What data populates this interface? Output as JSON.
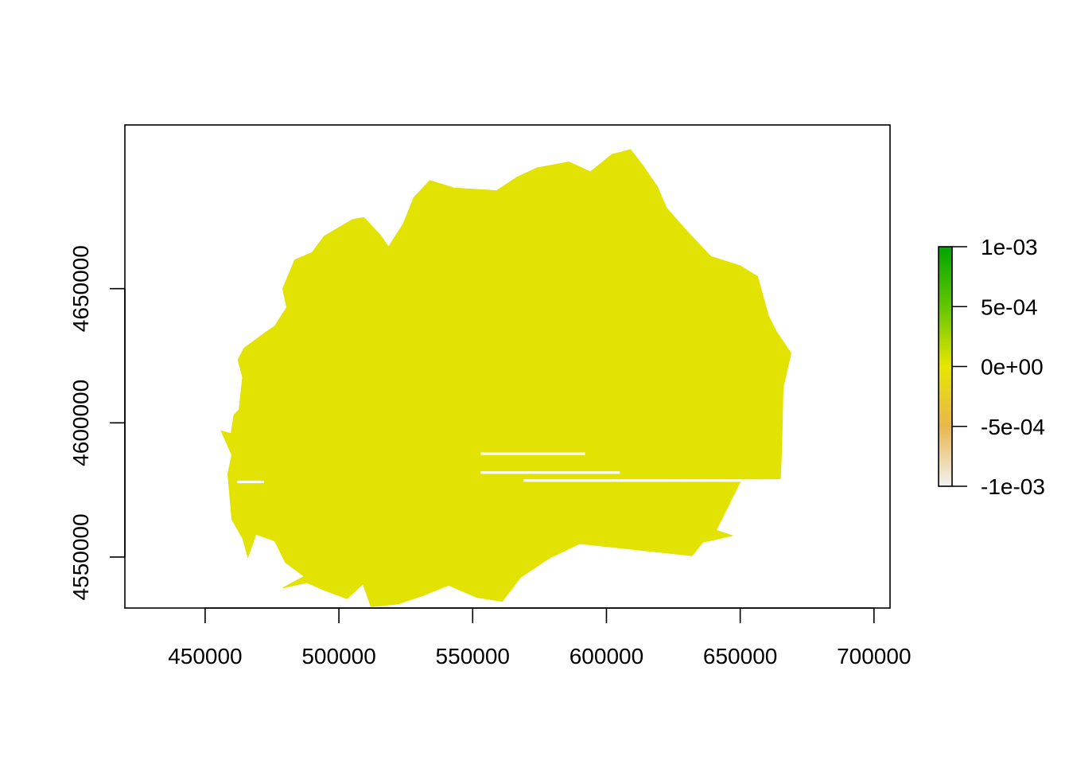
{
  "chart_data": {
    "type": "heatmap",
    "title": "",
    "xlabel": "",
    "ylabel": "",
    "xlim": [
      420000,
      706000
    ],
    "ylim": [
      4531000,
      4711000
    ],
    "x_ticks": [
      {
        "value": 450000,
        "label": "450000"
      },
      {
        "value": 500000,
        "label": "500000"
      },
      {
        "value": 550000,
        "label": "550000"
      },
      {
        "value": 600000,
        "label": "600000"
      },
      {
        "value": 650000,
        "label": "650000"
      },
      {
        "value": 700000,
        "label": "700000"
      }
    ],
    "y_ticks": [
      {
        "value": 4550000,
        "label": "4550000"
      },
      {
        "value": 4600000,
        "label": "4600000"
      },
      {
        "value": 4650000,
        "label": "4650000"
      }
    ],
    "raster_value": 0,
    "raster_color": "#e2e203",
    "region_outline": [
      [
        459700,
        4596000
      ],
      [
        460800,
        4603000
      ],
      [
        462700,
        4604800
      ],
      [
        464000,
        4617000
      ],
      [
        462300,
        4623500
      ],
      [
        464500,
        4627800
      ],
      [
        473000,
        4634000
      ],
      [
        476000,
        4636000
      ],
      [
        480500,
        4643000
      ],
      [
        479000,
        4650000
      ],
      [
        483500,
        4660700
      ],
      [
        490000,
        4663500
      ],
      [
        494500,
        4669500
      ],
      [
        505000,
        4675700
      ],
      [
        509300,
        4676500
      ],
      [
        515500,
        4670000
      ],
      [
        518500,
        4665500
      ],
      [
        524000,
        4674000
      ],
      [
        528000,
        4684000
      ],
      [
        534000,
        4690300
      ],
      [
        543000,
        4687500
      ],
      [
        559000,
        4686500
      ],
      [
        566500,
        4691500
      ],
      [
        574000,
        4695000
      ],
      [
        586000,
        4697200
      ],
      [
        594000,
        4693500
      ],
      [
        602000,
        4700000
      ],
      [
        609000,
        4701800
      ],
      [
        613500,
        4696000
      ],
      [
        619000,
        4688000
      ],
      [
        622500,
        4680000
      ],
      [
        630500,
        4671000
      ],
      [
        639000,
        4662000
      ],
      [
        650000,
        4658500
      ],
      [
        656500,
        4654500
      ],
      [
        660500,
        4640000
      ],
      [
        663500,
        4634000
      ],
      [
        669000,
        4626000
      ],
      [
        666000,
        4613000
      ],
      [
        665500,
        4591000
      ],
      [
        665000,
        4579200
      ],
      [
        612000,
        4578800
      ],
      [
        650000,
        4578000
      ],
      [
        641000,
        4560000
      ],
      [
        647000,
        4558000
      ],
      [
        636000,
        4555500
      ],
      [
        632000,
        4550500
      ],
      [
        604000,
        4553500
      ],
      [
        590000,
        4555000
      ],
      [
        578500,
        4549500
      ],
      [
        568000,
        4542500
      ],
      [
        561000,
        4533500
      ],
      [
        551500,
        4535000
      ],
      [
        541000,
        4539500
      ],
      [
        531000,
        4535500
      ],
      [
        522000,
        4532500
      ],
      [
        512000,
        4531500
      ],
      [
        509000,
        4540000
      ],
      [
        503000,
        4534500
      ],
      [
        495000,
        4537500
      ],
      [
        488000,
        4540500
      ],
      [
        479000,
        4538500
      ],
      [
        487000,
        4542800
      ],
      [
        480000,
        4548000
      ],
      [
        476000,
        4556000
      ],
      [
        469000,
        4558500
      ],
      [
        466000,
        4550000
      ],
      [
        464000,
        4557000
      ],
      [
        460000,
        4564000
      ],
      [
        458500,
        4581000
      ],
      [
        460000,
        4588000
      ],
      [
        456000,
        4597000
      ]
    ],
    "no_data_gaps": [
      {
        "x": [
          553000,
          592000
        ],
        "y": 4588500
      },
      {
        "x": [
          553000,
          605000
        ],
        "y": 4581500
      },
      {
        "x": [
          569000,
          650000
        ],
        "y": 4578500
      },
      {
        "x": [
          462000,
          472000
        ],
        "y": 4578000
      }
    ],
    "legend": {
      "placement": "right",
      "range": [
        -0.001,
        0.001
      ],
      "ticks": [
        {
          "value": 0.001,
          "label": "1e-03"
        },
        {
          "value": 0.0005,
          "label": "5e-04"
        },
        {
          "value": 0,
          "label": "0e+00"
        },
        {
          "value": -0.0005,
          "label": "-5e-04"
        },
        {
          "value": -0.001,
          "label": "-1e-03"
        }
      ],
      "color_stops": [
        {
          "value": 0.001,
          "color": "#00a600"
        },
        {
          "value": 0.0005,
          "color": "#63c600"
        },
        {
          "value": 0,
          "color": "#e6e600"
        },
        {
          "value": -0.0005,
          "color": "#eab64c"
        },
        {
          "value": -0.001,
          "color": "#f2f2f2"
        }
      ]
    }
  }
}
